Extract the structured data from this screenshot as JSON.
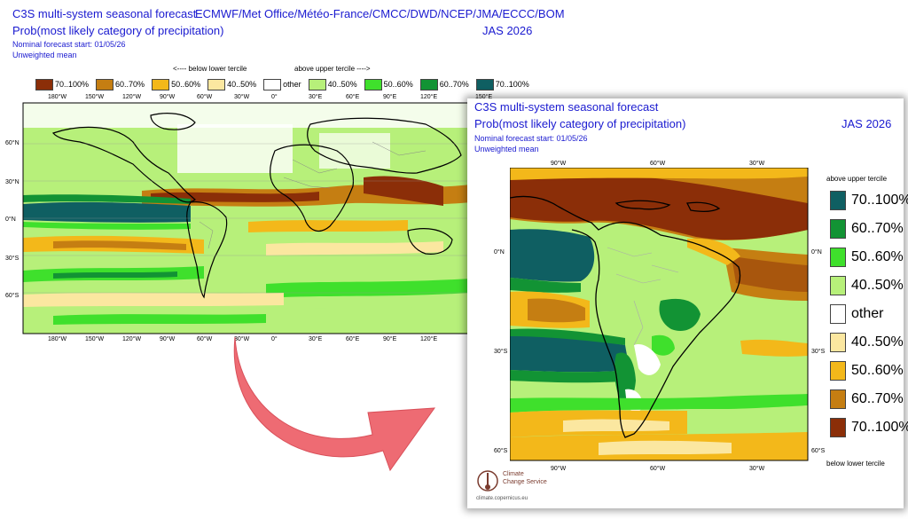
{
  "main_header": {
    "title": "C3S multi-system seasonal forecast",
    "centres": "ECMWF/Met Office/Météo-France/CMCC/DWD/NCEP/JMA/ECCC/BOM",
    "subtitle": "Prob(most likely category of precipitation)",
    "season": "JAS 2026",
    "start": "Nominal forecast start: 01/05/26",
    "weighting": "Unweighted mean"
  },
  "legend_h": {
    "below_label": "<---- below lower tercile",
    "above_label": "above upper tercile ---->",
    "items": [
      {
        "label": "70..100%",
        "color": "#8b2e08"
      },
      {
        "label": "60..70%",
        "color": "#c57e12"
      },
      {
        "label": "50..60%",
        "color": "#f3b81a"
      },
      {
        "label": "40..50%",
        "color": "#fbe7a0"
      },
      {
        "label": "other",
        "color": "#ffffff"
      },
      {
        "label": "40..50%",
        "color": "#b7f07a"
      },
      {
        "label": "50..60%",
        "color": "#3fe02c"
      },
      {
        "label": "60..70%",
        "color": "#129334"
      },
      {
        "label": "70..100%",
        "color": "#0f5f62"
      }
    ]
  },
  "global_map": {
    "lon_ticks": [
      "180°W",
      "150°W",
      "120°W",
      "90°W",
      "60°W",
      "30°W",
      "0°",
      "30°E",
      "60°E",
      "90°E",
      "120°E"
    ],
    "lat_ticks": [
      "60°N",
      "30°N",
      "0°N",
      "30°S",
      "60°S"
    ],
    "partial_label": "150°E"
  },
  "zoom_panel": {
    "title": "C3S multi-system seasonal forecast",
    "subtitle": "Prob(most likely category of precipitation)",
    "season": "JAS 2026",
    "start": "Nominal forecast start: 01/05/26",
    "weighting": "Unweighted mean",
    "lon_ticks": [
      "90°W",
      "60°W",
      "30°W"
    ],
    "lat_left": [
      "0°N",
      "30°S",
      "60°S"
    ],
    "lat_right": [
      "0°N",
      "30°S",
      "60°S"
    ],
    "legend_top": "above upper tercile",
    "legend_bottom": "below lower tercile",
    "legend_items": [
      {
        "label": "70..100%",
        "color": "#0f5f62"
      },
      {
        "label": "60..70%",
        "color": "#129334"
      },
      {
        "label": "50..60%",
        "color": "#3fe02c"
      },
      {
        "label": "40..50%",
        "color": "#b7f07a"
      },
      {
        "label": "other",
        "color": "#ffffff"
      },
      {
        "label": "40..50%",
        "color": "#fbe7a0"
      },
      {
        "label": "50..60%",
        "color": "#f3b81a"
      },
      {
        "label": "60..70%",
        "color": "#c57e12"
      },
      {
        "label": "70..100%",
        "color": "#8b2e08"
      }
    ],
    "logo_line1": "Climate",
    "logo_line2": "Change Service",
    "logo_url": "climate.copernicus.eu"
  },
  "colors": {
    "below_strong": "#8b2e08",
    "below_med": "#c57e12",
    "below_weak": "#f3b81a",
    "below_light": "#fbe7a0",
    "above_light": "#b7f07a",
    "above_weak": "#3fe02c",
    "above_med": "#129334",
    "above_strong": "#0f5f62",
    "arrow": "#ee6b73"
  }
}
